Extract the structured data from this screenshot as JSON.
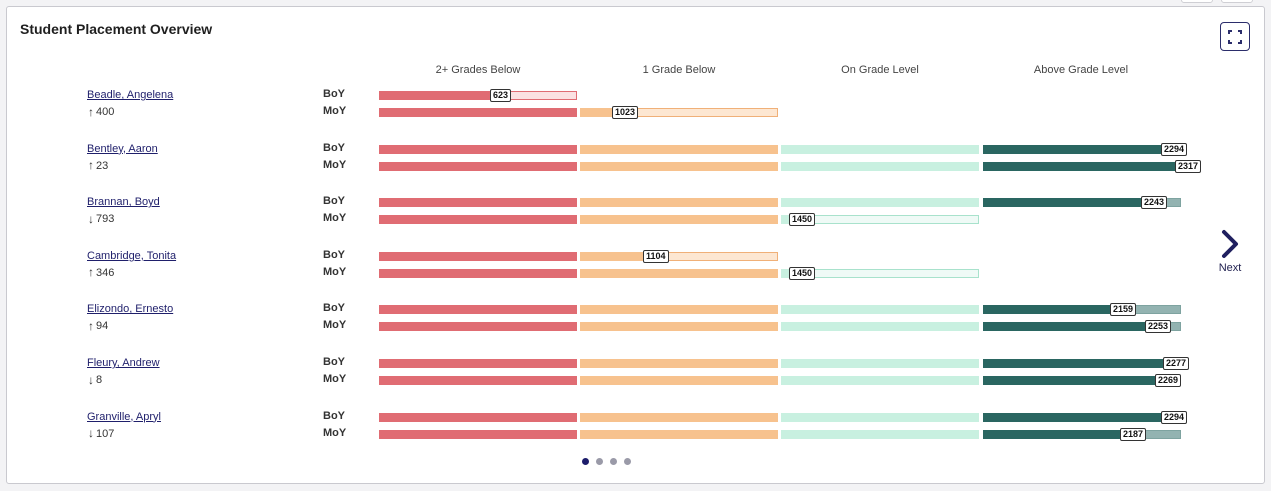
{
  "title": "Student Placement Overview",
  "columns": [
    "2+ Grades Below",
    "1 Grade Below",
    "On Grade Level",
    "Above Grade Level"
  ],
  "colors": {
    "two_below": "#e06c73",
    "two_below_light": "#fbe1e2",
    "one_below": "#f7c28e",
    "one_below_light": "#fde7d2",
    "on_grade": "#c8f0e0",
    "on_grade_light": "#effaf6",
    "above": "#2a6661",
    "above_light": "#93b3b1"
  },
  "students": [
    {
      "name": "Beadle, Angelena",
      "dir": "up",
      "change": "400",
      "boy": {
        "score": "623",
        "band": 0,
        "fill": 0.62
      },
      "moy": {
        "score": "1023",
        "band": 1,
        "fill": 0.22
      }
    },
    {
      "name": "Bentley, Aaron",
      "dir": "up",
      "change": "23",
      "boy": {
        "score": "2294",
        "band": 3,
        "fill": 0.96
      },
      "moy": {
        "score": "2317",
        "band": 3,
        "fill": 1.03
      }
    },
    {
      "name": "Brannan, Boyd",
      "dir": "down",
      "change": "793",
      "boy": {
        "score": "2243",
        "band": 3,
        "fill": 0.86
      },
      "moy": {
        "score": "1450",
        "band": 2,
        "fill": 0.06
      }
    },
    {
      "name": "Cambridge, Tonita",
      "dir": "up",
      "change": "346",
      "boy": {
        "score": "1104",
        "band": 1,
        "fill": 0.38
      },
      "moy": {
        "score": "1450",
        "band": 2,
        "fill": 0.06
      }
    },
    {
      "name": "Elizondo, Ernesto",
      "dir": "up",
      "change": "94",
      "boy": {
        "score": "2159",
        "band": 3,
        "fill": 0.7
      },
      "moy": {
        "score": "2253",
        "band": 3,
        "fill": 0.88
      }
    },
    {
      "name": "Fleury, Andrew",
      "dir": "down",
      "change": "8",
      "boy": {
        "score": "2277",
        "band": 3,
        "fill": 0.97
      },
      "moy": {
        "score": "2269",
        "band": 3,
        "fill": 0.93
      }
    },
    {
      "name": "Granville, Apryl",
      "dir": "down",
      "change": "107",
      "boy": {
        "score": "2294",
        "band": 3,
        "fill": 0.96
      },
      "moy": {
        "score": "2187",
        "band": 3,
        "fill": 0.75
      }
    }
  ],
  "labels": {
    "boy": "BoY",
    "moy": "MoY",
    "next": "Next"
  },
  "pagination": {
    "pages": 4,
    "current": 0
  }
}
